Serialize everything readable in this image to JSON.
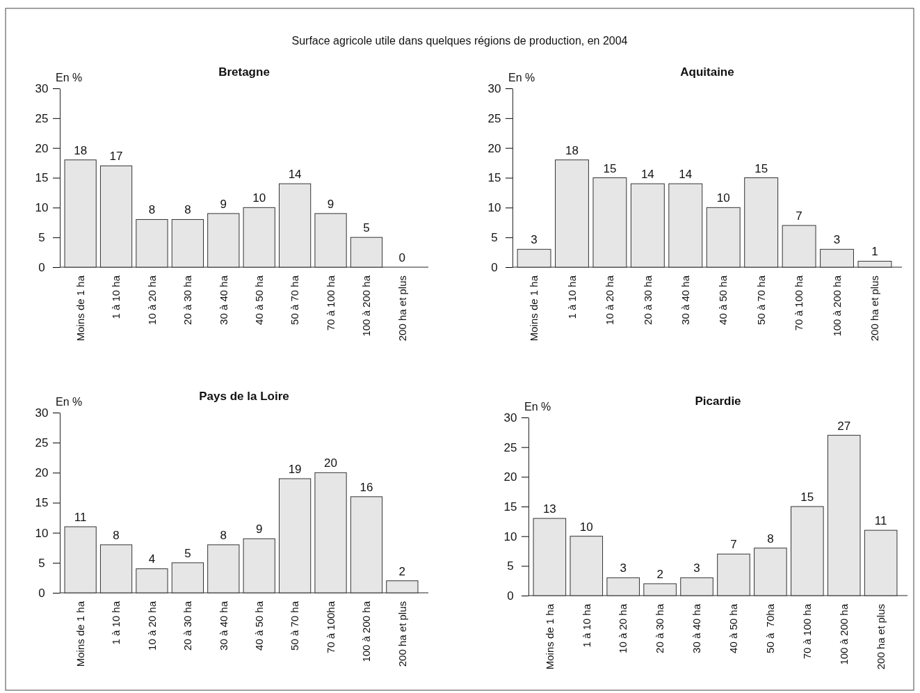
{
  "chart_data": [
    {
      "type": "other",
      "title": "Surface agricole utile dans quelques régions de production, en 2004"
    },
    {
      "type": "bar",
      "title": "Bretagne",
      "ylabel": "En %",
      "categories": [
        "Moins de 1 ha",
        "1 à 10 ha",
        "10 à 20 ha",
        "20 à 30 ha",
        "30 à 40 ha",
        "40 à 50 ha",
        "50 à 70 ha",
        "70 à 100 ha",
        "100 à 200 ha",
        "200 ha et plus"
      ],
      "values": [
        18,
        17,
        8,
        8,
        9,
        10,
        14,
        9,
        5,
        0
      ],
      "color": "#e6e6e6",
      "ylim": [
        0,
        30
      ],
      "yticks": [
        0,
        5,
        10,
        15,
        20,
        25,
        30
      ],
      "data_labels": true
    },
    {
      "type": "bar",
      "title": "Aquitaine",
      "ylabel": "En %",
      "categories": [
        "Moins de 1 ha",
        "1 à 10 ha",
        "10 à 20 ha",
        "20 à 30 ha",
        "30 à 40 ha",
        "40 à 50 ha",
        "50 à 70 ha",
        "70 à 100 ha",
        "100 à 200 ha",
        "200 ha et plus"
      ],
      "values": [
        3,
        18,
        15,
        14,
        14,
        10,
        15,
        7,
        3,
        1
      ],
      "color": "#e6e6e6",
      "ylim": [
        0,
        30
      ],
      "yticks": [
        0,
        5,
        10,
        15,
        20,
        25,
        30
      ],
      "data_labels": true
    },
    {
      "type": "bar",
      "title": "Pays de la Loire",
      "ylabel": "En %",
      "categories": [
        "Moins de 1 ha",
        "1 à 10 ha",
        "10 à 20 ha",
        "20 à 30 ha",
        "30 à 40 ha",
        "40 à 50 ha",
        "50 à 70 ha",
        "70 à 100ha",
        "100 à 200 ha",
        "200 ha et plus"
      ],
      "values": [
        11,
        8,
        4,
        5,
        8,
        9,
        19,
        20,
        16,
        2
      ],
      "color": "#e6e6e6",
      "ylim": [
        0,
        30
      ],
      "yticks": [
        0,
        5,
        10,
        15,
        20,
        25,
        30
      ],
      "data_labels": true
    },
    {
      "type": "bar",
      "title": "Picardie",
      "ylabel": "En %",
      "categories": [
        "Moins de 1 ha",
        "1 à 10 ha",
        "10 à 20 ha",
        "20 à 30 ha",
        "30 à 40 ha",
        "40 à 50 ha",
        "50 à  70ha",
        "70 à 100 ha",
        "100 à 200 ha",
        "200 ha et plus"
      ],
      "values": [
        13,
        10,
        3,
        2,
        3,
        7,
        8,
        15,
        27,
        11
      ],
      "color": "#e6e6e6",
      "ylim": [
        0,
        30
      ],
      "yticks": [
        0,
        5,
        10,
        15,
        20,
        25,
        30
      ],
      "data_labels": true
    }
  ]
}
